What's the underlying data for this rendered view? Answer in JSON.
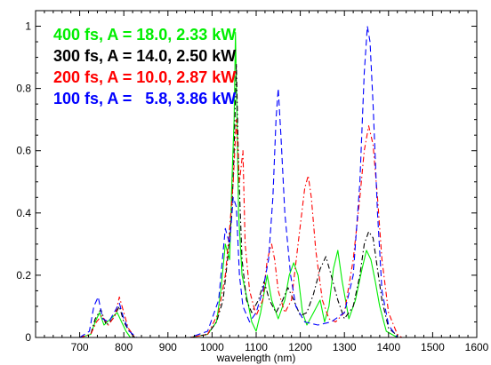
{
  "chart_data": {
    "type": "line",
    "title": "",
    "xlabel": "wavelength (nm)",
    "ylabel": "",
    "xlim": [
      600,
      1600
    ],
    "ylim": [
      0,
      1.05
    ],
    "xticks": [
      700,
      800,
      900,
      1000,
      1100,
      1200,
      1300,
      1400,
      1500,
      1600
    ],
    "yticks": [
      0,
      0.2,
      0.4,
      0.6,
      0.8,
      1
    ],
    "ytick_labels": [
      "0",
      "0.2",
      "0.4",
      "0.6",
      "0.8",
      "1"
    ],
    "grid": false,
    "legend_position": "top-left",
    "series": [
      {
        "name": "400 fs, A = 18.0, 2.33 kW",
        "color": "#00ee00",
        "dash": "solid",
        "points": [
          [
            700,
            0
          ],
          [
            725,
            0.01
          ],
          [
            735,
            0.05
          ],
          [
            745,
            0.08
          ],
          [
            755,
            0.04
          ],
          [
            770,
            0.06
          ],
          [
            785,
            0.08
          ],
          [
            795,
            0.05
          ],
          [
            805,
            0.02
          ],
          [
            815,
            0
          ],
          [
            950,
            0
          ],
          [
            990,
            0.01
          ],
          [
            1010,
            0.05
          ],
          [
            1020,
            0.15
          ],
          [
            1030,
            0.3
          ],
          [
            1040,
            0.25
          ],
          [
            1045,
            0.5
          ],
          [
            1050,
            0.7
          ],
          [
            1053,
            0.98
          ],
          [
            1056,
            0.75
          ],
          [
            1060,
            0.4
          ],
          [
            1068,
            0.2
          ],
          [
            1080,
            0.12
          ],
          [
            1090,
            0.05
          ],
          [
            1100,
            0.02
          ],
          [
            1110,
            0.08
          ],
          [
            1125,
            0.2
          ],
          [
            1135,
            0.12
          ],
          [
            1150,
            0.06
          ],
          [
            1165,
            0.12
          ],
          [
            1175,
            0.2
          ],
          [
            1185,
            0.24
          ],
          [
            1195,
            0.2
          ],
          [
            1205,
            0.08
          ],
          [
            1215,
            0.04
          ],
          [
            1230,
            0.08
          ],
          [
            1245,
            0.12
          ],
          [
            1255,
            0.05
          ],
          [
            1265,
            0.1
          ],
          [
            1275,
            0.22
          ],
          [
            1285,
            0.28
          ],
          [
            1295,
            0.18
          ],
          [
            1310,
            0.06
          ],
          [
            1325,
            0.12
          ],
          [
            1340,
            0.22
          ],
          [
            1350,
            0.28
          ],
          [
            1360,
            0.25
          ],
          [
            1370,
            0.18
          ],
          [
            1380,
            0.1
          ],
          [
            1395,
            0.02
          ],
          [
            1420,
            0
          ]
        ]
      },
      {
        "name": "300 fs, A = 14.0, 2.50 kW",
        "color": "#000000",
        "dash": "dashdot",
        "points": [
          [
            700,
            0
          ],
          [
            725,
            0.01
          ],
          [
            735,
            0.06
          ],
          [
            748,
            0.09
          ],
          [
            760,
            0.04
          ],
          [
            775,
            0.06
          ],
          [
            790,
            0.1
          ],
          [
            800,
            0.05
          ],
          [
            812,
            0.02
          ],
          [
            825,
            0
          ],
          [
            950,
            0
          ],
          [
            990,
            0.01
          ],
          [
            1010,
            0.05
          ],
          [
            1025,
            0.12
          ],
          [
            1035,
            0.25
          ],
          [
            1045,
            0.4
          ],
          [
            1050,
            0.6
          ],
          [
            1055,
            0.88
          ],
          [
            1060,
            0.55
          ],
          [
            1068,
            0.25
          ],
          [
            1078,
            0.12
          ],
          [
            1090,
            0.08
          ],
          [
            1105,
            0.12
          ],
          [
            1118,
            0.18
          ],
          [
            1130,
            0.12
          ],
          [
            1145,
            0.08
          ],
          [
            1160,
            0.12
          ],
          [
            1172,
            0.16
          ],
          [
            1185,
            0.12
          ],
          [
            1200,
            0.07
          ],
          [
            1215,
            0.08
          ],
          [
            1230,
            0.14
          ],
          [
            1245,
            0.22
          ],
          [
            1258,
            0.26
          ],
          [
            1270,
            0.2
          ],
          [
            1285,
            0.12
          ],
          [
            1300,
            0.06
          ],
          [
            1320,
            0.1
          ],
          [
            1335,
            0.2
          ],
          [
            1345,
            0.3
          ],
          [
            1355,
            0.34
          ],
          [
            1365,
            0.32
          ],
          [
            1375,
            0.22
          ],
          [
            1385,
            0.12
          ],
          [
            1400,
            0.03
          ],
          [
            1425,
            0
          ]
        ]
      },
      {
        "name": "200 fs, A = 10.0, 2.87 kW",
        "color": "#ff0000",
        "dash": "dashdot",
        "points": [
          [
            700,
            0
          ],
          [
            725,
            0.01
          ],
          [
            738,
            0.05
          ],
          [
            750,
            0.07
          ],
          [
            765,
            0.04
          ],
          [
            780,
            0.07
          ],
          [
            790,
            0.13
          ],
          [
            800,
            0.08
          ],
          [
            810,
            0.03
          ],
          [
            825,
            0
          ],
          [
            950,
            0
          ],
          [
            990,
            0.01
          ],
          [
            1015,
            0.08
          ],
          [
            1030,
            0.2
          ],
          [
            1040,
            0.35
          ],
          [
            1048,
            0.5
          ],
          [
            1055,
            0.7
          ],
          [
            1062,
            0.5
          ],
          [
            1070,
            0.6
          ],
          [
            1075,
            0.3
          ],
          [
            1085,
            0.15
          ],
          [
            1100,
            0.07
          ],
          [
            1115,
            0.12
          ],
          [
            1125,
            0.25
          ],
          [
            1135,
            0.3
          ],
          [
            1142,
            0.25
          ],
          [
            1150,
            0.15
          ],
          [
            1165,
            0.08
          ],
          [
            1180,
            0.12
          ],
          [
            1195,
            0.3
          ],
          [
            1210,
            0.48
          ],
          [
            1218,
            0.52
          ],
          [
            1225,
            0.45
          ],
          [
            1235,
            0.28
          ],
          [
            1250,
            0.12
          ],
          [
            1265,
            0.06
          ],
          [
            1280,
            0.05
          ],
          [
            1300,
            0.08
          ],
          [
            1320,
            0.25
          ],
          [
            1335,
            0.45
          ],
          [
            1345,
            0.6
          ],
          [
            1355,
            0.68
          ],
          [
            1365,
            0.62
          ],
          [
            1375,
            0.45
          ],
          [
            1385,
            0.25
          ],
          [
            1400,
            0.08
          ],
          [
            1420,
            0.01
          ],
          [
            1430,
            0
          ]
        ]
      },
      {
        "name": "100 fs, A =   5.8, 3.86 kW",
        "color": "#0000ff",
        "dash": "dash",
        "points": [
          [
            700,
            0
          ],
          [
            722,
            0.02
          ],
          [
            732,
            0.1
          ],
          [
            742,
            0.13
          ],
          [
            752,
            0.06
          ],
          [
            766,
            0.05
          ],
          [
            778,
            0.08
          ],
          [
            790,
            0.11
          ],
          [
            800,
            0.06
          ],
          [
            812,
            0.02
          ],
          [
            830,
            0
          ],
          [
            950,
            0
          ],
          [
            990,
            0.02
          ],
          [
            1015,
            0.12
          ],
          [
            1030,
            0.35
          ],
          [
            1040,
            0.3
          ],
          [
            1048,
            0.45
          ],
          [
            1055,
            0.42
          ],
          [
            1062,
            0.2
          ],
          [
            1070,
            0.1
          ],
          [
            1085,
            0.05
          ],
          [
            1100,
            0.08
          ],
          [
            1115,
            0.15
          ],
          [
            1128,
            0.25
          ],
          [
            1138,
            0.45
          ],
          [
            1145,
            0.7
          ],
          [
            1150,
            0.8
          ],
          [
            1156,
            0.65
          ],
          [
            1165,
            0.4
          ],
          [
            1178,
            0.2
          ],
          [
            1190,
            0.1
          ],
          [
            1210,
            0.05
          ],
          [
            1240,
            0.04
          ],
          [
            1270,
            0.05
          ],
          [
            1300,
            0.08
          ],
          [
            1320,
            0.2
          ],
          [
            1335,
            0.5
          ],
          [
            1345,
            0.85
          ],
          [
            1352,
            1.0
          ],
          [
            1358,
            0.95
          ],
          [
            1365,
            0.75
          ],
          [
            1375,
            0.4
          ],
          [
            1385,
            0.15
          ],
          [
            1400,
            0.04
          ],
          [
            1420,
            0
          ]
        ]
      }
    ]
  }
}
